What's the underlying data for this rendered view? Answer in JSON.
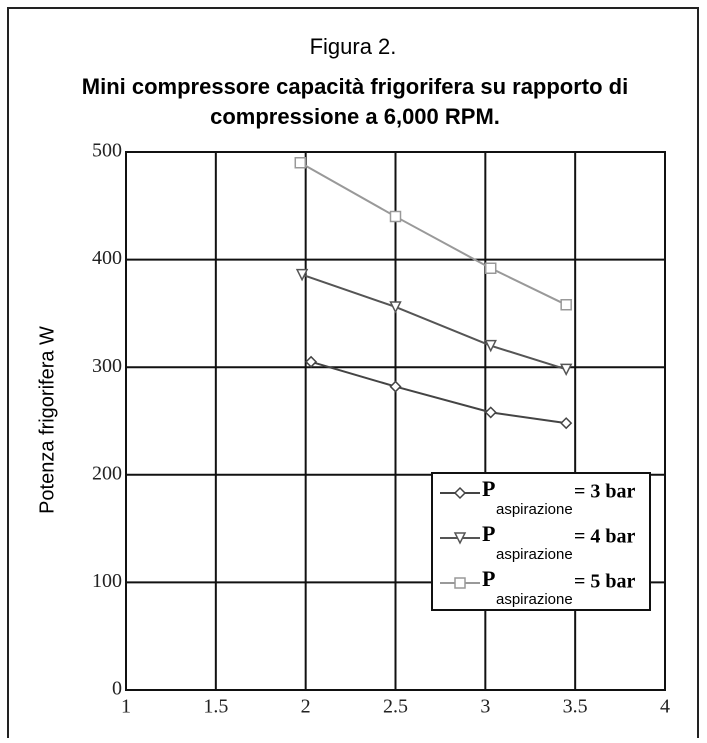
{
  "chart_data": {
    "type": "line",
    "title": "Figura 2.",
    "subtitle": "Mini compressore capacità frigorifera su rapporto di compressione a 6,000 RPM.",
    "y_label": "Potenza frigorifera W",
    "xlim": [
      1,
      4
    ],
    "xticks": [
      1,
      1.5,
      2,
      2.5,
      3,
      3.5,
      4
    ],
    "ylim": [
      0,
      500
    ],
    "yticks": [
      0,
      100,
      200,
      300,
      400,
      500
    ],
    "grid": true,
    "legend_symbol": "P",
    "legend_subscript": "aspirazione",
    "series": [
      {
        "name": "= 3 bar",
        "color": "#444",
        "marker": "diamond",
        "x": [
          2.03,
          2.5,
          3.03,
          3.45
        ],
        "values": [
          305,
          282,
          258,
          248
        ]
      },
      {
        "name": "= 4 bar",
        "color": "#555",
        "marker": "triangle-down",
        "x": [
          1.98,
          2.5,
          3.03,
          3.45
        ],
        "values": [
          386,
          356,
          320,
          298
        ]
      },
      {
        "name": "= 5 bar",
        "color": "#999",
        "marker": "square",
        "x": [
          1.97,
          2.5,
          3.03,
          3.45
        ],
        "values": [
          490,
          440,
          392,
          358
        ]
      }
    ]
  }
}
